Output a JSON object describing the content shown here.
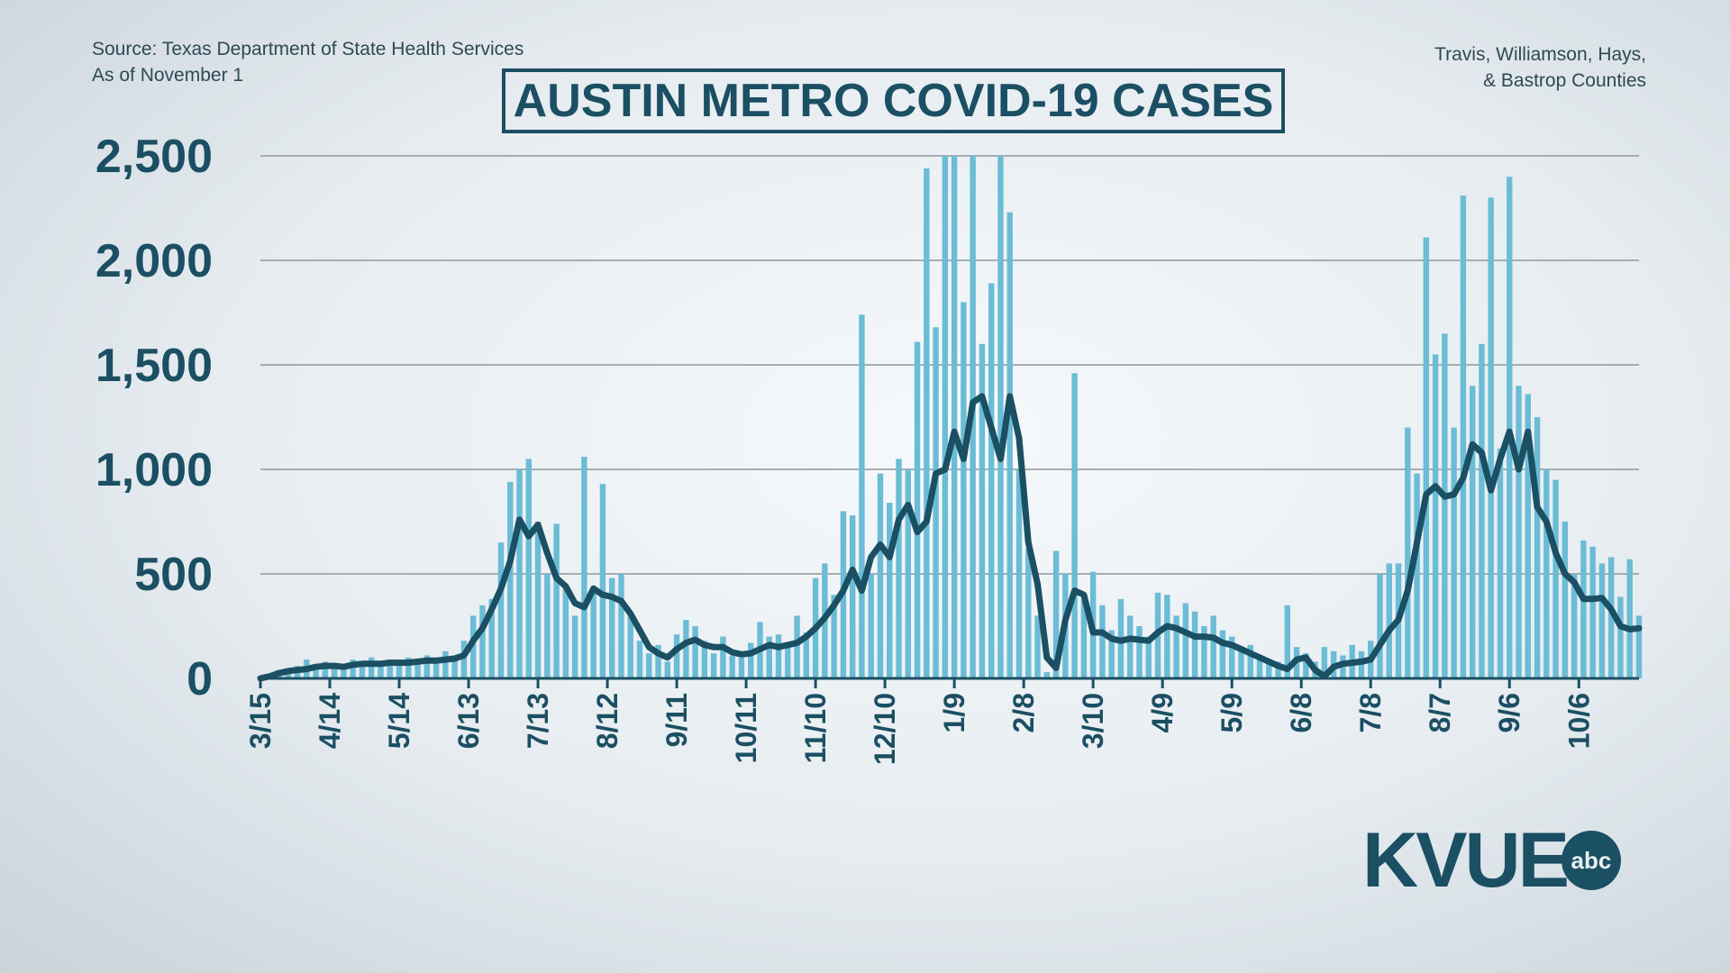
{
  "header": {
    "source": "Source: Texas Department of State Health Services",
    "as_of": "As of November 1",
    "counties_line1": "Travis, Williamson,  Hays,",
    "counties_line2": "& Bastrop Counties"
  },
  "logo": {
    "text": "KVUE",
    "badge": "abc"
  },
  "colors": {
    "bars": "#6bbcd6",
    "line": "#1b4f63",
    "text": "#1b4f63",
    "grid": "#a7adb1"
  },
  "chart_data": {
    "type": "bar",
    "title": "AUSTIN METRO COVID-19 CASES",
    "xlabel": "",
    "ylabel": "",
    "ylim": [
      0,
      2500
    ],
    "yticks": [
      0,
      500,
      1000,
      1500,
      2000,
      2500
    ],
    "ytick_labels": [
      "0",
      "500",
      "1,000",
      "1,500",
      "2,000",
      "2,500"
    ],
    "xlim": [
      "2020-03-15",
      "2021-11-01"
    ],
    "xticks": [
      "2020-03-15",
      "2020-04-14",
      "2020-05-14",
      "2020-06-13",
      "2020-07-13",
      "2020-08-12",
      "2020-09-11",
      "2020-10-11",
      "2020-11-10",
      "2020-12-10",
      "2021-01-09",
      "2021-02-08",
      "2021-03-10",
      "2021-04-09",
      "2021-05-09",
      "2021-06-08",
      "2021-07-08",
      "2021-08-07",
      "2021-09-06",
      "2021-10-06"
    ],
    "xtick_labels": [
      "3/15",
      "4/14",
      "5/14",
      "6/13",
      "7/13",
      "8/12",
      "9/11",
      "10/11",
      "11/10",
      "12/10",
      "1/9",
      "2/8",
      "3/10",
      "4/9",
      "5/9",
      "6/8",
      "7/8",
      "8/7",
      "9/6",
      "10/6"
    ],
    "grid": true,
    "series": [
      {
        "kind": "bar",
        "start": "2020-03-15",
        "step_days": 4,
        "values": [
          5,
          15,
          40,
          30,
          60,
          90,
          40,
          80,
          70,
          60,
          90,
          70,
          100,
          60,
          90,
          80,
          100,
          90,
          110,
          80,
          130,
          100,
          180,
          300,
          350,
          380,
          650,
          940,
          1000,
          1050,
          750,
          500,
          740,
          430,
          300,
          1060,
          420,
          930,
          480,
          500,
          300,
          180,
          120,
          160,
          80,
          210,
          280,
          250,
          180,
          120,
          200,
          110,
          100,
          170,
          270,
          200,
          210,
          160,
          300,
          220,
          480,
          550,
          400,
          800,
          780,
          1740,
          500,
          980,
          840,
          1050,
          1000,
          1610,
          2440,
          1680,
          2500,
          2500,
          1800,
          2500,
          1600,
          1890,
          2500,
          2230,
          1000,
          620,
          300,
          30,
          610,
          500,
          1460,
          380,
          510,
          350,
          230,
          380,
          300,
          250,
          200,
          410,
          400,
          300,
          360,
          320,
          250,
          300,
          230,
          200,
          150,
          160,
          110,
          90,
          80,
          350,
          150,
          120,
          80,
          150,
          130,
          110,
          160,
          130,
          180,
          500,
          550,
          550,
          1200,
          980,
          2110,
          1550,
          1650,
          1200,
          2310,
          1400,
          1600,
          2300,
          1100,
          2400,
          1400,
          1360,
          1250,
          1000,
          950,
          750,
          500,
          660,
          630,
          550,
          580,
          390,
          570,
          300
        ]
      },
      {
        "kind": "line",
        "start": "2020-03-15",
        "step_days": 4,
        "values": [
          0,
          10,
          25,
          35,
          40,
          45,
          55,
          60,
          60,
          55,
          65,
          70,
          70,
          70,
          75,
          75,
          75,
          80,
          85,
          85,
          90,
          95,
          110,
          180,
          240,
          330,
          430,
          560,
          760,
          680,
          735,
          600,
          480,
          440,
          360,
          340,
          430,
          400,
          390,
          370,
          310,
          230,
          150,
          120,
          100,
          140,
          170,
          185,
          160,
          150,
          150,
          125,
          115,
          120,
          140,
          160,
          150,
          160,
          170,
          200,
          240,
          290,
          350,
          420,
          520,
          420,
          580,
          640,
          580,
          760,
          830,
          700,
          750,
          980,
          1000,
          1180,
          1050,
          1320,
          1350,
          1200,
          1050,
          1350,
          1150,
          650,
          450,
          100,
          50,
          280,
          420,
          400,
          220,
          220,
          190,
          180,
          190,
          185,
          180,
          220,
          250,
          240,
          220,
          200,
          200,
          195,
          170,
          160,
          140,
          120,
          100,
          80,
          60,
          45,
          90,
          100,
          40,
          10,
          55,
          70,
          75,
          80,
          90,
          160,
          230,
          280,
          420,
          650,
          880,
          920,
          870,
          880,
          960,
          1120,
          1080,
          900,
          1050,
          1180,
          1000,
          1180,
          820,
          750,
          600,
          500,
          460,
          380,
          380,
          385,
          330,
          250,
          235,
          240
        ]
      }
    ]
  }
}
